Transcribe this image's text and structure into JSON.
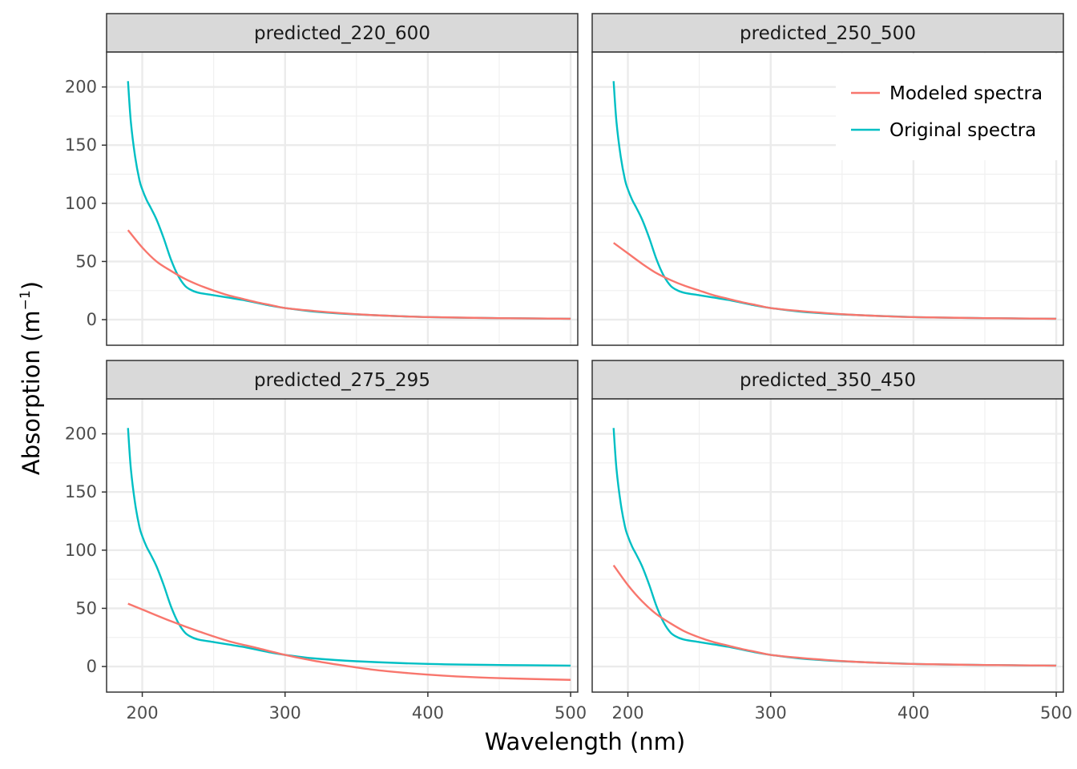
{
  "chart_data": {
    "type": "line",
    "xlabel": "Wavelength (nm)",
    "ylabel": {
      "base": "Absorption (m",
      "sup": "−1",
      "close": ")"
    },
    "xlim": [
      175,
      505
    ],
    "ylim": [
      -22,
      230
    ],
    "x_ticks": [
      200,
      300,
      400,
      500
    ],
    "y_ticks": [
      0,
      50,
      100,
      150,
      200
    ],
    "grid": true,
    "legend": {
      "placement": "top-right",
      "entries": [
        {
          "name": "Modeled spectra",
          "color": "#F8766D"
        },
        {
          "name": "Original spectra",
          "color": "#00BFC4"
        }
      ]
    },
    "original_spectra": {
      "x": [
        190,
        192,
        195,
        198,
        200,
        203,
        206,
        210,
        215,
        220,
        225,
        230,
        235,
        240,
        250,
        260,
        270,
        280,
        290,
        300,
        320,
        350,
        400,
        450,
        500
      ],
      "y": [
        205,
        170,
        140,
        120,
        112,
        103,
        96,
        86,
        70,
        52,
        38,
        29,
        25,
        23,
        21,
        19,
        17,
        14.5,
        12,
        10,
        7,
        4.5,
        2.2,
        1.3,
        0.8
      ]
    },
    "panels": [
      {
        "title": "predicted_220_600",
        "modeled": {
          "x": [
            190,
            200,
            210,
            220,
            230,
            240,
            250,
            260,
            270,
            280,
            290,
            300,
            320,
            340,
            360,
            380,
            400,
            450,
            500
          ],
          "y": [
            77,
            62,
            50,
            42,
            35,
            29.5,
            25,
            21,
            18,
            15,
            12.5,
            10,
            7.5,
            5.5,
            4,
            3,
            2.2,
            1.3,
            0.8
          ]
        }
      },
      {
        "title": "predicted_250_500",
        "modeled": {
          "x": [
            190,
            200,
            210,
            220,
            230,
            240,
            250,
            260,
            270,
            280,
            290,
            300,
            320,
            340,
            360,
            380,
            400,
            450,
            500
          ],
          "y": [
            66,
            57,
            48,
            40,
            34,
            29,
            25,
            21,
            18,
            15,
            12.5,
            10,
            7.5,
            5.5,
            4,
            3,
            2.2,
            1.3,
            0.8
          ]
        }
      },
      {
        "title": "predicted_275_295",
        "modeled": {
          "x": [
            190,
            200,
            220,
            240,
            260,
            280,
            300,
            320,
            340,
            360,
            380,
            400,
            420,
            450,
            500
          ],
          "y": [
            54,
            49,
            39,
            30,
            22,
            16,
            10,
            5,
            1,
            -2.5,
            -5,
            -7,
            -8.5,
            -10,
            -11.5
          ]
        }
      },
      {
        "title": "predicted_350_450",
        "modeled": {
          "x": [
            190,
            200,
            210,
            220,
            230,
            240,
            250,
            260,
            270,
            280,
            290,
            300,
            320,
            340,
            360,
            380,
            400,
            450,
            500
          ],
          "y": [
            87,
            70,
            56,
            45,
            37,
            30,
            25,
            21,
            18,
            15,
            12.5,
            10,
            7.5,
            5.5,
            4,
            3,
            2.2,
            1.3,
            0.8
          ]
        }
      }
    ]
  }
}
